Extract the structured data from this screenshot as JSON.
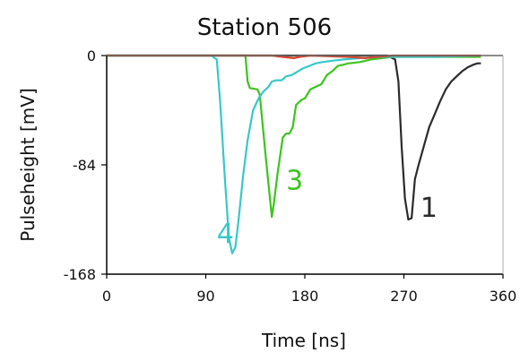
{
  "chart_data": {
    "type": "line",
    "title": "Station 506",
    "xlabel": "Time [ns]",
    "ylabel": "Pulseheight [mV]",
    "xlim": [
      0,
      360
    ],
    "ylim": [
      -168,
      0
    ],
    "xticks": [
      0,
      90,
      180,
      270,
      360
    ],
    "yticks": [
      0,
      -84,
      -168
    ],
    "grid": false,
    "series": [
      {
        "name": "1",
        "color": "#2b2b2b",
        "points": [
          [
            0,
            0
          ],
          [
            255,
            0
          ],
          [
            262,
            -3
          ],
          [
            265,
            -20
          ],
          [
            268,
            -70
          ],
          [
            271,
            -110
          ],
          [
            274,
            -126
          ],
          [
            277,
            -125
          ],
          [
            280,
            -95
          ],
          [
            283,
            -85
          ],
          [
            288,
            -70
          ],
          [
            293,
            -55
          ],
          [
            298,
            -45
          ],
          [
            303,
            -35
          ],
          [
            308,
            -26
          ],
          [
            313,
            -20
          ],
          [
            318,
            -16
          ],
          [
            323,
            -12
          ],
          [
            328,
            -9
          ],
          [
            333,
            -7
          ],
          [
            337,
            -6
          ],
          [
            340,
            -6
          ]
        ]
      },
      {
        "name": "3",
        "color": "#3cc41e",
        "points": [
          [
            0,
            0
          ],
          [
            120,
            0
          ],
          [
            126,
            0
          ],
          [
            128,
            -20
          ],
          [
            130,
            -25
          ],
          [
            137,
            -26
          ],
          [
            139,
            -30
          ],
          [
            141,
            -47
          ],
          [
            145,
            -82
          ],
          [
            150,
            -124
          ],
          [
            152,
            -113
          ],
          [
            155,
            -92
          ],
          [
            160,
            -63
          ],
          [
            163,
            -60
          ],
          [
            166,
            -60
          ],
          [
            169,
            -55
          ],
          [
            172,
            -38
          ],
          [
            177,
            -34
          ],
          [
            180,
            -33
          ],
          [
            185,
            -26
          ],
          [
            190,
            -24
          ],
          [
            195,
            -22
          ],
          [
            200,
            -15
          ],
          [
            205,
            -12
          ],
          [
            210,
            -8
          ],
          [
            215,
            -7
          ],
          [
            220,
            -6
          ],
          [
            230,
            -5
          ],
          [
            240,
            -3
          ],
          [
            250,
            -2
          ],
          [
            260,
            -1
          ],
          [
            340,
            -1
          ]
        ]
      },
      {
        "name": "4",
        "color": "#38c8c8",
        "points": [
          [
            0,
            0
          ],
          [
            95,
            0
          ],
          [
            100,
            -3
          ],
          [
            103,
            -35
          ],
          [
            107,
            -90
          ],
          [
            111,
            -140
          ],
          [
            114,
            -152
          ],
          [
            117,
            -147
          ],
          [
            120,
            -125
          ],
          [
            124,
            -92
          ],
          [
            128,
            -65
          ],
          [
            133,
            -42
          ],
          [
            138,
            -33
          ],
          [
            142,
            -28
          ],
          [
            147,
            -24
          ],
          [
            150,
            -20
          ],
          [
            154,
            -19
          ],
          [
            159,
            -19
          ],
          [
            163,
            -16
          ],
          [
            168,
            -15
          ],
          [
            172,
            -13
          ],
          [
            178,
            -10
          ],
          [
            184,
            -8
          ],
          [
            190,
            -6
          ],
          [
            196,
            -5
          ],
          [
            205,
            -4
          ],
          [
            215,
            -3
          ],
          [
            230,
            -2
          ],
          [
            250,
            -1
          ],
          [
            300,
            -1
          ],
          [
            340,
            0
          ]
        ]
      },
      {
        "name": "",
        "color": "#d9432b",
        "points": [
          [
            0,
            0
          ],
          [
            150,
            0
          ],
          [
            160,
            -1
          ],
          [
            170,
            -2
          ],
          [
            175,
            -1
          ],
          [
            185,
            0
          ],
          [
            220,
            -1
          ],
          [
            235,
            -2
          ],
          [
            245,
            -1
          ],
          [
            260,
            0
          ],
          [
            340,
            0
          ]
        ]
      }
    ],
    "annotations": [
      {
        "text": "1",
        "x": 285,
        "y": -124,
        "color": "#2b2b2b"
      },
      {
        "text": "3",
        "x": 163,
        "y": -103,
        "color": "#3cc41e"
      },
      {
        "text": "4",
        "x": 100,
        "y": -144,
        "color": "#38c8c8"
      }
    ]
  }
}
